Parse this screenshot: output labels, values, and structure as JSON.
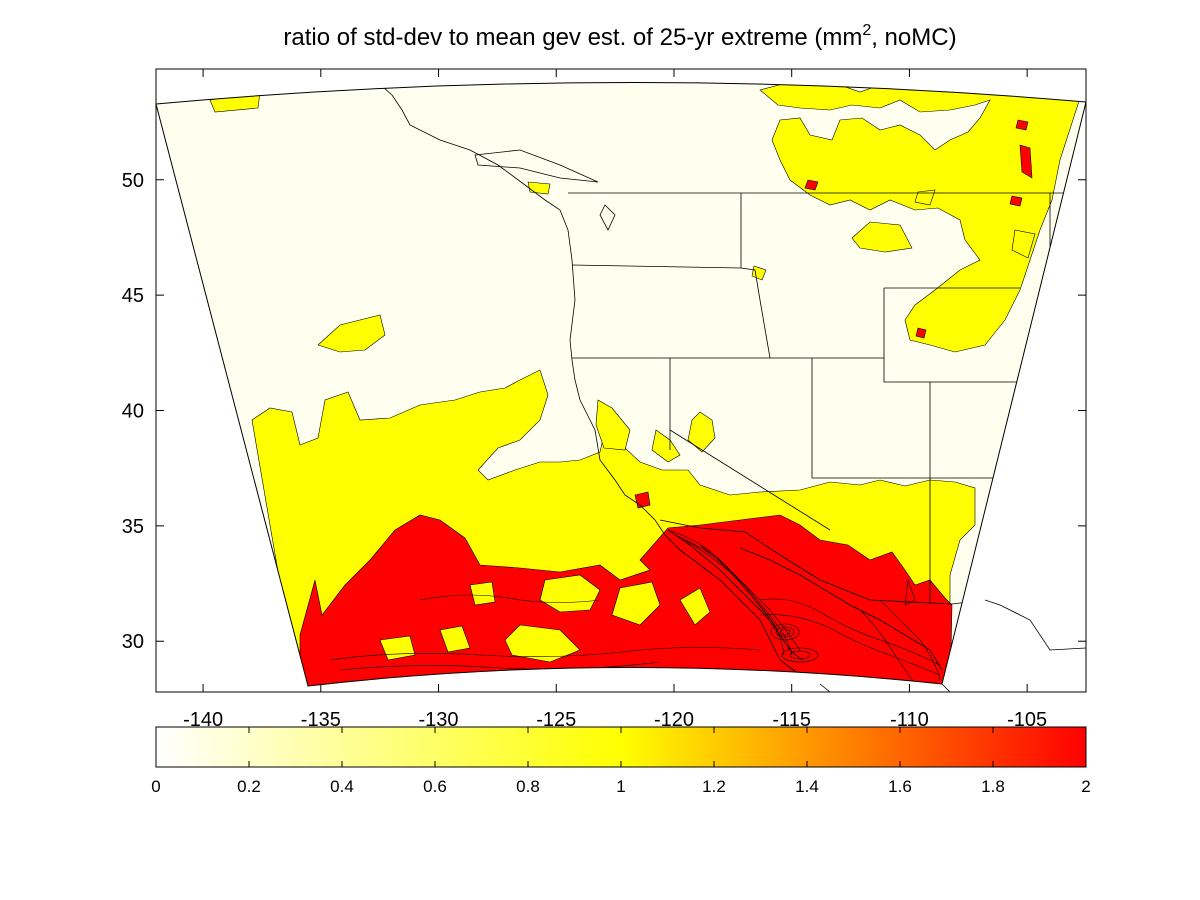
{
  "title": {
    "prefix": "ratio of std-dev to mean gev est. of 25-yr extreme (mm",
    "superscript": "2",
    "suffix": ", noMC)"
  },
  "chart_data": {
    "type": "heatmap",
    "title": "ratio of std-dev to mean gev est. of 25-yr extreme (mm2, noMC)",
    "xlabel": "",
    "ylabel": "",
    "xlim": [
      -142,
      -102.5
    ],
    "ylim": [
      27.8,
      54.8
    ],
    "x_ticks": [
      "-140",
      "-135",
      "-130",
      "-125",
      "-120",
      "-115",
      "-110",
      "-105"
    ],
    "y_ticks": [
      "30",
      "35",
      "40",
      "45",
      "50"
    ],
    "colorbar": {
      "range": [
        0,
        2
      ],
      "ticks": [
        "0",
        "0.2",
        "0.4",
        "0.6",
        "0.8",
        "1",
        "1.2",
        "1.4",
        "1.6",
        "1.8",
        "2"
      ],
      "colormap": [
        "#ffffff",
        "#ffff00",
        "#ff0000"
      ]
    },
    "contour_levels": [
      {
        "range": "0-1",
        "color": "#fffff0"
      },
      {
        "range": "1-1.5",
        "color": "#ffff00"
      },
      {
        "range": ">1.5",
        "color": "#ff0000"
      }
    ],
    "grid": false
  }
}
